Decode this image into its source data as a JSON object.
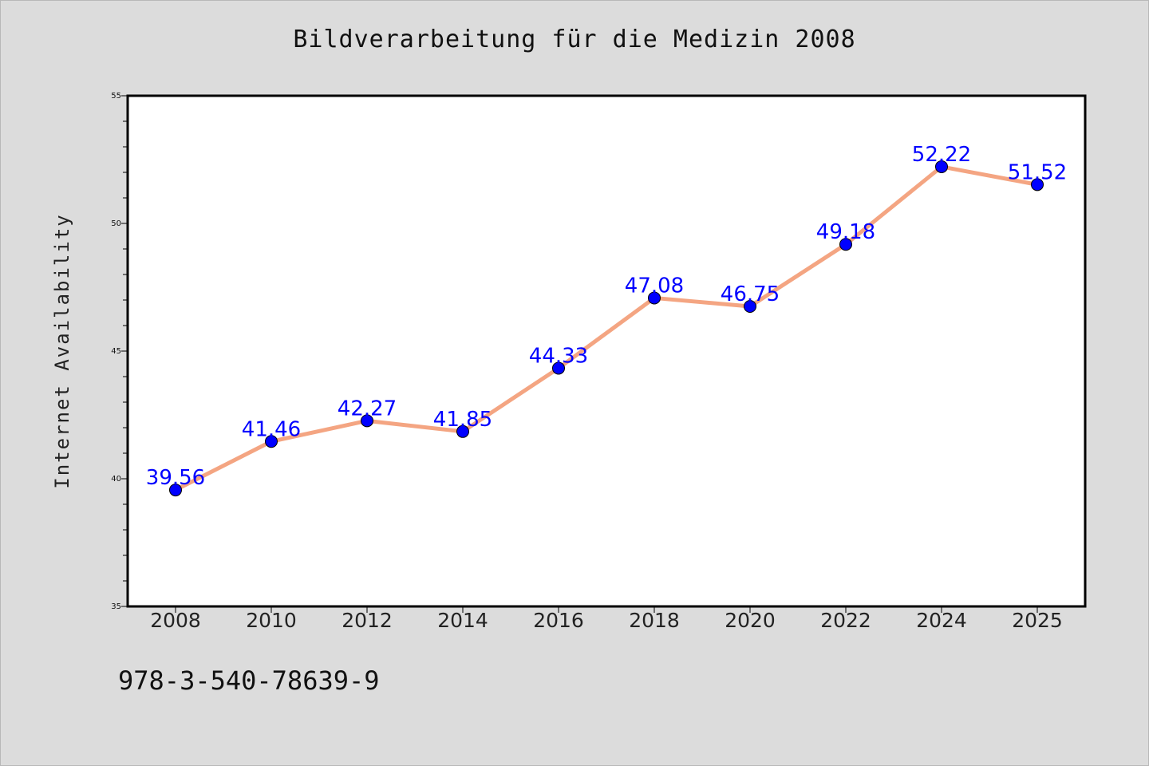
{
  "title": "Bildverarbeitung für die Medizin 2008",
  "footer": {
    "isbn": "978-3-540-78639-9"
  },
  "colors": {
    "background": "#dcdcdc",
    "plot_background": "#ffffff",
    "line": "#f4a582",
    "marker": "#0000ff",
    "label": "#0000ff"
  },
  "chart_data": {
    "type": "line",
    "title": "Bildverarbeitung für die Medizin 2008",
    "xlabel": "",
    "ylabel": "Internet Availability",
    "categories": [
      "2008",
      "2010",
      "2012",
      "2014",
      "2016",
      "2018",
      "2020",
      "2022",
      "2024",
      "2025"
    ],
    "series": [
      {
        "values": [
          39.56,
          41.46,
          42.27,
          41.85,
          44.33,
          47.08,
          46.75,
          49.18,
          52.22,
          51.52
        ],
        "labels": [
          "39.56",
          "41.46",
          "42.27",
          "41.85",
          "44.33",
          "47.08",
          "46.75",
          "49.18",
          "52.22",
          "51.52"
        ]
      }
    ],
    "ylim": [
      35,
      55
    ],
    "yticks": [
      "35",
      "40",
      "45",
      "50",
      "55"
    ],
    "grid": false,
    "legend": "none"
  }
}
